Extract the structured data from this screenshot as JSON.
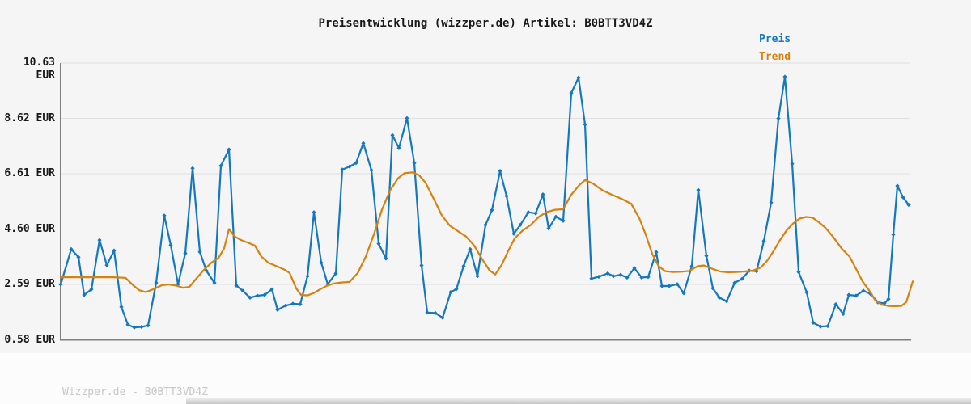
{
  "page": {
    "title": "Preisentwicklung (wizzper.de) Artikel: B0BTT3VD4Z",
    "watermark": "Wizzper.de - B0BTT3VD4Z",
    "background": "#f5f5f5"
  },
  "legend": {
    "position": "top-right",
    "items": [
      {
        "label": "Preis",
        "color": "#1578bf"
      },
      {
        "label": "Trend",
        "color": "#d6820f"
      }
    ]
  },
  "chart_data": {
    "type": "line",
    "title": "Preisentwicklung (wizzper.de) Artikel: B0BTT3VD4Z",
    "xlabel": "",
    "ylabel": "",
    "unit": "EUR",
    "ylim": [
      0.58,
      10.63
    ],
    "grid": "horizontal",
    "grid_color": "#e0e0e0",
    "spine_color": "#7f7f7f",
    "legend_position": "top-right",
    "x_axis_tick_labels": [],
    "yticks": [
      {
        "label": "10.63 EUR",
        "value": 10.63
      },
      {
        "label": "8.62 EUR",
        "value": 8.62
      },
      {
        "label": "6.61 EUR",
        "value": 6.61
      },
      {
        "label": "4.60 EUR",
        "value": 4.6
      },
      {
        "label": "2.59 EUR",
        "value": 2.59
      },
      {
        "label": "0.58 EUR",
        "value": 0.58
      }
    ],
    "series": [
      {
        "name": "Preis",
        "color": "#1578bf",
        "marker": "diamond",
        "points": [
          [
            75,
            2.59
          ],
          [
            88,
            3.87
          ],
          [
            97,
            3.58
          ],
          [
            104,
            2.21
          ],
          [
            113,
            2.41
          ],
          [
            123,
            4.2
          ],
          [
            132,
            3.29
          ],
          [
            141,
            3.82
          ],
          [
            150,
            1.77
          ],
          [
            158,
            1.13
          ],
          [
            166,
            1.03
          ],
          [
            175,
            1.05
          ],
          [
            183,
            1.1
          ],
          [
            193,
            2.65
          ],
          [
            203,
            5.09
          ],
          [
            211,
            4.02
          ],
          [
            220,
            2.6
          ],
          [
            229,
            3.72
          ],
          [
            238,
            6.81
          ],
          [
            247,
            3.77
          ],
          [
            255,
            3.09
          ],
          [
            265,
            2.65
          ],
          [
            273,
            6.9
          ],
          [
            283,
            7.49
          ],
          [
            292,
            2.55
          ],
          [
            300,
            2.36
          ],
          [
            309,
            2.11
          ],
          [
            318,
            2.18
          ],
          [
            327,
            2.21
          ],
          [
            336,
            2.41
          ],
          [
            343,
            1.67
          ],
          [
            353,
            1.82
          ],
          [
            362,
            1.89
          ],
          [
            371,
            1.87
          ],
          [
            380,
            2.89
          ],
          [
            388,
            5.21
          ],
          [
            397,
            3.38
          ],
          [
            405,
            2.6
          ],
          [
            415,
            2.99
          ],
          [
            423,
            6.76
          ],
          [
            432,
            6.87
          ],
          [
            440,
            7.0
          ],
          [
            449,
            7.72
          ],
          [
            459,
            6.74
          ],
          [
            468,
            4.07
          ],
          [
            477,
            3.53
          ],
          [
            485,
            8.01
          ],
          [
            493,
            7.54
          ],
          [
            503,
            8.63
          ],
          [
            512,
            7.0
          ],
          [
            521,
            3.28
          ],
          [
            528,
            1.57
          ],
          [
            538,
            1.55
          ],
          [
            547,
            1.38
          ],
          [
            557,
            2.31
          ],
          [
            564,
            2.42
          ],
          [
            573,
            3.26
          ],
          [
            581,
            3.87
          ],
          [
            590,
            2.89
          ],
          [
            600,
            4.75
          ],
          [
            608,
            5.29
          ],
          [
            618,
            6.71
          ],
          [
            626,
            5.8
          ],
          [
            635,
            4.43
          ],
          [
            643,
            4.75
          ],
          [
            653,
            5.21
          ],
          [
            662,
            5.17
          ],
          [
            671,
            5.86
          ],
          [
            678,
            4.62
          ],
          [
            687,
            5.05
          ],
          [
            696,
            4.9
          ],
          [
            706,
            9.54
          ],
          [
            715,
            10.1
          ],
          [
            723,
            8.4
          ],
          [
            731,
            2.8
          ],
          [
            740,
            2.87
          ],
          [
            751,
            2.99
          ],
          [
            758,
            2.89
          ],
          [
            767,
            2.94
          ],
          [
            775,
            2.84
          ],
          [
            784,
            3.18
          ],
          [
            793,
            2.84
          ],
          [
            801,
            2.86
          ],
          [
            811,
            3.76
          ],
          [
            818,
            2.53
          ],
          [
            827,
            2.53
          ],
          [
            837,
            2.6
          ],
          [
            845,
            2.27
          ],
          [
            855,
            3.26
          ],
          [
            863,
            6.02
          ],
          [
            873,
            3.63
          ],
          [
            881,
            2.45
          ],
          [
            889,
            2.11
          ],
          [
            898,
            1.98
          ],
          [
            908,
            2.65
          ],
          [
            917,
            2.79
          ],
          [
            926,
            3.09
          ],
          [
            935,
            3.07
          ],
          [
            944,
            4.17
          ],
          [
            953,
            5.56
          ],
          [
            962,
            8.62
          ],
          [
            970,
            10.13
          ],
          [
            979,
            6.97
          ],
          [
            987,
            3.04
          ],
          [
            997,
            2.3
          ],
          [
            1005,
            1.2
          ],
          [
            1014,
            1.06
          ],
          [
            1023,
            1.08
          ],
          [
            1033,
            1.87
          ],
          [
            1042,
            1.52
          ],
          [
            1049,
            2.21
          ],
          [
            1058,
            2.18
          ],
          [
            1067,
            2.36
          ],
          [
            1076,
            2.24
          ],
          [
            1085,
            1.94
          ],
          [
            1093,
            1.9
          ],
          [
            1098,
            2.06
          ],
          [
            1104,
            4.4
          ],
          [
            1109,
            6.17
          ],
          [
            1116,
            5.75
          ],
          [
            1123,
            5.48
          ]
        ]
      },
      {
        "name": "Trend",
        "color": "#d6820f",
        "marker": "none",
        "points": [
          [
            75,
            2.85
          ],
          [
            110,
            2.85
          ],
          [
            140,
            2.85
          ],
          [
            155,
            2.83
          ],
          [
            165,
            2.55
          ],
          [
            172,
            2.38
          ],
          [
            180,
            2.31
          ],
          [
            190,
            2.42
          ],
          [
            200,
            2.56
          ],
          [
            208,
            2.59
          ],
          [
            218,
            2.55
          ],
          [
            226,
            2.47
          ],
          [
            234,
            2.5
          ],
          [
            242,
            2.78
          ],
          [
            252,
            3.12
          ],
          [
            262,
            3.4
          ],
          [
            270,
            3.55
          ],
          [
            277,
            3.9
          ],
          [
            283,
            4.6
          ],
          [
            290,
            4.33
          ],
          [
            298,
            4.2
          ],
          [
            307,
            4.1
          ],
          [
            315,
            4.0
          ],
          [
            323,
            3.6
          ],
          [
            332,
            3.37
          ],
          [
            342,
            3.25
          ],
          [
            352,
            3.12
          ],
          [
            358,
            3.0
          ],
          [
            366,
            2.45
          ],
          [
            372,
            2.21
          ],
          [
            380,
            2.19
          ],
          [
            388,
            2.28
          ],
          [
            396,
            2.42
          ],
          [
            404,
            2.54
          ],
          [
            412,
            2.62
          ],
          [
            422,
            2.66
          ],
          [
            432,
            2.68
          ],
          [
            442,
            3.0
          ],
          [
            452,
            3.6
          ],
          [
            462,
            4.4
          ],
          [
            472,
            5.3
          ],
          [
            482,
            6.0
          ],
          [
            492,
            6.45
          ],
          [
            500,
            6.63
          ],
          [
            510,
            6.66
          ],
          [
            518,
            6.55
          ],
          [
            526,
            6.28
          ],
          [
            536,
            5.7
          ],
          [
            546,
            5.1
          ],
          [
            556,
            4.72
          ],
          [
            566,
            4.52
          ],
          [
            576,
            4.33
          ],
          [
            586,
            4.0
          ],
          [
            596,
            3.5
          ],
          [
            605,
            3.1
          ],
          [
            612,
            2.95
          ],
          [
            620,
            3.3
          ],
          [
            628,
            3.8
          ],
          [
            636,
            4.26
          ],
          [
            646,
            4.55
          ],
          [
            656,
            4.75
          ],
          [
            666,
            5.05
          ],
          [
            676,
            5.22
          ],
          [
            686,
            5.3
          ],
          [
            696,
            5.32
          ],
          [
            706,
            5.85
          ],
          [
            716,
            6.2
          ],
          [
            723,
            6.38
          ],
          [
            733,
            6.25
          ],
          [
            745,
            6.0
          ],
          [
            756,
            5.85
          ],
          [
            768,
            5.7
          ],
          [
            780,
            5.52
          ],
          [
            790,
            5.0
          ],
          [
            798,
            4.4
          ],
          [
            806,
            3.7
          ],
          [
            814,
            3.25
          ],
          [
            822,
            3.07
          ],
          [
            832,
            3.04
          ],
          [
            842,
            3.05
          ],
          [
            852,
            3.08
          ],
          [
            862,
            3.25
          ],
          [
            870,
            3.28
          ],
          [
            880,
            3.16
          ],
          [
            890,
            3.06
          ],
          [
            900,
            3.03
          ],
          [
            910,
            3.04
          ],
          [
            920,
            3.06
          ],
          [
            930,
            3.09
          ],
          [
            940,
            3.2
          ],
          [
            948,
            3.45
          ],
          [
            956,
            3.8
          ],
          [
            964,
            4.2
          ],
          [
            972,
            4.55
          ],
          [
            980,
            4.8
          ],
          [
            988,
            4.98
          ],
          [
            996,
            5.04
          ],
          [
            1004,
            5.02
          ],
          [
            1012,
            4.85
          ],
          [
            1020,
            4.65
          ],
          [
            1030,
            4.3
          ],
          [
            1040,
            3.9
          ],
          [
            1050,
            3.6
          ],
          [
            1058,
            3.15
          ],
          [
            1066,
            2.7
          ],
          [
            1074,
            2.38
          ],
          [
            1082,
            2.0
          ],
          [
            1090,
            1.85
          ],
          [
            1098,
            1.81
          ],
          [
            1106,
            1.8
          ],
          [
            1114,
            1.81
          ],
          [
            1120,
            1.95
          ],
          [
            1128,
            2.7
          ]
        ]
      }
    ]
  }
}
